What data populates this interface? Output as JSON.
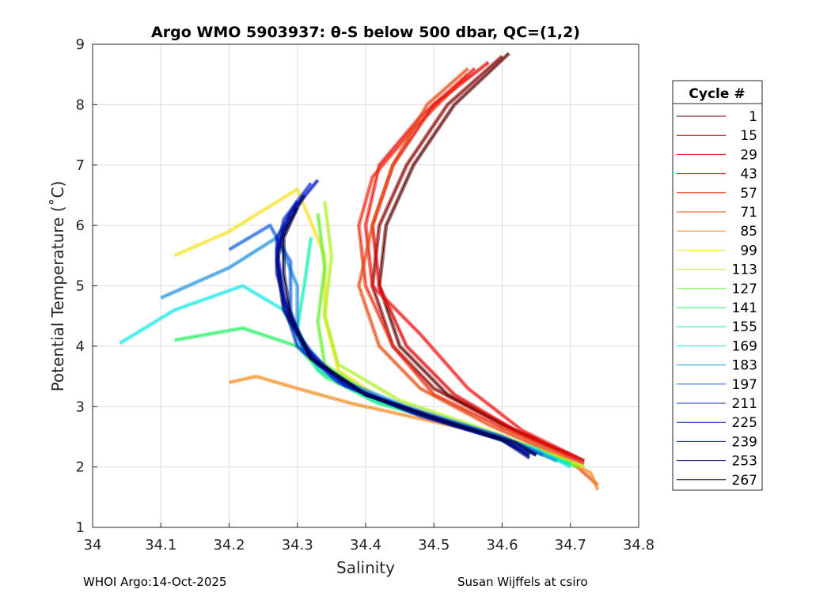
{
  "chart_data": {
    "type": "line",
    "title": "Argo WMO 5903937: θ-S below 500 dbar,  QC=(1,2)",
    "xlabel": "Salinity",
    "ylabel": "Potential Temperature (˚C)",
    "xlim": [
      34,
      34.8
    ],
    "ylim": [
      1,
      9
    ],
    "xticks": [
      "34",
      "34.1",
      "34.2",
      "34.3",
      "34.4",
      "34.5",
      "34.6",
      "34.7",
      "34.8"
    ],
    "yticks": [
      "1",
      "2",
      "3",
      "4",
      "5",
      "6",
      "7",
      "8",
      "9"
    ],
    "grid": true,
    "legend": {
      "title": "Cycle #",
      "placement": "outside-right"
    },
    "series": [
      {
        "name": "1",
        "color": "#5a0000",
        "points": [
          [
            34.61,
            8.85
          ],
          [
            34.53,
            8
          ],
          [
            34.47,
            7
          ],
          [
            34.43,
            6
          ],
          [
            34.42,
            5
          ],
          [
            34.45,
            4
          ],
          [
            34.52,
            3.2
          ],
          [
            34.62,
            2.6
          ],
          [
            34.7,
            2.2
          ],
          [
            34.72,
            2.1
          ]
        ]
      },
      {
        "name": "15",
        "color": "#8b0000",
        "points": [
          [
            34.6,
            8.8
          ],
          [
            34.52,
            8
          ],
          [
            34.46,
            7
          ],
          [
            34.42,
            6
          ],
          [
            34.41,
            5
          ],
          [
            34.44,
            4
          ],
          [
            34.5,
            3.3
          ],
          [
            34.6,
            2.7
          ],
          [
            34.7,
            2.2
          ]
        ]
      },
      {
        "name": "29",
        "color": "#e00000",
        "points": [
          [
            34.58,
            8.7
          ],
          [
            34.5,
            8
          ],
          [
            34.44,
            7
          ],
          [
            34.41,
            6
          ],
          [
            34.42,
            5
          ],
          [
            34.46,
            4
          ],
          [
            34.53,
            3.2
          ],
          [
            34.62,
            2.6
          ],
          [
            34.71,
            2.15
          ]
        ]
      },
      {
        "name": "43",
        "color": "#ee1010",
        "points": [
          [
            34.56,
            8.6
          ],
          [
            34.48,
            7.8
          ],
          [
            34.42,
            7
          ],
          [
            34.4,
            6
          ],
          [
            34.41,
            5
          ],
          [
            34.48,
            4.2
          ],
          [
            34.55,
            3.3
          ],
          [
            34.63,
            2.6
          ],
          [
            34.72,
            2.1
          ]
        ]
      },
      {
        "name": "57",
        "color": "#f02a10",
        "points": [
          [
            34.55,
            8.5
          ],
          [
            34.47,
            7.6
          ],
          [
            34.41,
            6.8
          ],
          [
            34.39,
            6
          ],
          [
            34.4,
            5
          ],
          [
            34.44,
            4
          ],
          [
            34.5,
            3.2
          ],
          [
            34.6,
            2.65
          ],
          [
            34.72,
            2.05
          ]
        ]
      },
      {
        "name": "71",
        "color": "#e84a10",
        "points": [
          [
            34.55,
            8.6
          ],
          [
            34.49,
            8
          ],
          [
            34.44,
            7
          ],
          [
            34.41,
            6
          ],
          [
            34.39,
            5
          ],
          [
            34.42,
            4
          ],
          [
            34.48,
            3.3
          ],
          [
            34.58,
            2.7
          ],
          [
            34.7,
            2.1
          ],
          [
            34.74,
            1.7
          ]
        ]
      },
      {
        "name": "85",
        "color": "#f08c20",
        "points": [
          [
            34.2,
            3.4
          ],
          [
            34.24,
            3.5
          ],
          [
            34.3,
            3.3
          ],
          [
            34.38,
            3.05
          ],
          [
            34.48,
            2.8
          ],
          [
            34.58,
            2.55
          ],
          [
            34.68,
            2.2
          ],
          [
            34.73,
            1.9
          ],
          [
            34.74,
            1.62
          ]
        ]
      },
      {
        "name": "99",
        "color": "#f5e020",
        "points": [
          [
            34.12,
            5.5
          ],
          [
            34.2,
            5.9
          ],
          [
            34.3,
            6.6
          ],
          [
            34.34,
            5.5
          ],
          [
            34.34,
            4.5
          ],
          [
            34.36,
            3.6
          ],
          [
            34.44,
            3.0
          ],
          [
            34.58,
            2.55
          ],
          [
            34.72,
            2.0
          ]
        ]
      },
      {
        "name": "113",
        "color": "#b0f020",
        "points": [
          [
            34.34,
            6.4
          ],
          [
            34.35,
            5.5
          ],
          [
            34.34,
            4.5
          ],
          [
            34.36,
            3.7
          ],
          [
            34.45,
            3.1
          ],
          [
            34.58,
            2.6
          ],
          [
            34.72,
            2.0
          ]
        ]
      },
      {
        "name": "127",
        "color": "#60f030",
        "points": [
          [
            34.33,
            6.2
          ],
          [
            34.34,
            5.3
          ],
          [
            34.33,
            4.4
          ],
          [
            34.34,
            3.7
          ],
          [
            34.42,
            3.1
          ],
          [
            34.56,
            2.6
          ],
          [
            34.71,
            2.0
          ]
        ]
      },
      {
        "name": "141",
        "color": "#20f060",
        "points": [
          [
            34.12,
            4.1
          ],
          [
            34.22,
            4.3
          ],
          [
            34.3,
            4.0
          ],
          [
            34.34,
            3.5
          ],
          [
            34.42,
            3.05
          ],
          [
            34.55,
            2.65
          ],
          [
            34.7,
            2.05
          ]
        ]
      },
      {
        "name": "155",
        "color": "#10f0b0",
        "points": [
          [
            34.32,
            5.8
          ],
          [
            34.31,
            5
          ],
          [
            34.3,
            4.3
          ],
          [
            34.33,
            3.6
          ],
          [
            34.41,
            3.1
          ],
          [
            34.55,
            2.65
          ],
          [
            34.7,
            2.05
          ]
        ]
      },
      {
        "name": "169",
        "color": "#10e8e8",
        "points": [
          [
            34.04,
            4.05
          ],
          [
            34.12,
            4.6
          ],
          [
            34.22,
            5.0
          ],
          [
            34.28,
            4.6
          ],
          [
            34.31,
            3.9
          ],
          [
            34.38,
            3.3
          ],
          [
            34.5,
            2.8
          ],
          [
            34.65,
            2.3
          ],
          [
            34.7,
            2.0
          ]
        ]
      },
      {
        "name": "183",
        "color": "#2090e0",
        "points": [
          [
            34.1,
            4.8
          ],
          [
            34.2,
            5.3
          ],
          [
            34.27,
            5.8
          ],
          [
            34.3,
            5.0
          ],
          [
            34.3,
            4.2
          ],
          [
            34.35,
            3.5
          ],
          [
            34.46,
            3.0
          ],
          [
            34.6,
            2.5
          ],
          [
            34.68,
            2.1
          ]
        ]
      },
      {
        "name": "197",
        "color": "#1060e0",
        "points": [
          [
            34.2,
            5.6
          ],
          [
            34.26,
            6.0
          ],
          [
            34.29,
            5.4
          ],
          [
            34.29,
            4.6
          ],
          [
            34.31,
            3.9
          ],
          [
            34.37,
            3.35
          ],
          [
            34.48,
            2.9
          ],
          [
            34.6,
            2.5
          ],
          [
            34.66,
            2.2
          ]
        ]
      },
      {
        "name": "211",
        "color": "#1030d0",
        "points": [
          [
            34.32,
            6.7
          ],
          [
            34.28,
            6.1
          ],
          [
            34.27,
            5.5
          ],
          [
            34.28,
            4.7
          ],
          [
            34.3,
            4.0
          ],
          [
            34.36,
            3.4
          ],
          [
            34.47,
            2.9
          ],
          [
            34.59,
            2.5
          ],
          [
            34.65,
            2.2
          ]
        ]
      },
      {
        "name": "225",
        "color": "#0010c0",
        "points": [
          [
            34.33,
            6.75
          ],
          [
            34.29,
            6.2
          ],
          [
            34.27,
            5.6
          ],
          [
            34.28,
            4.8
          ],
          [
            34.31,
            4.0
          ],
          [
            34.37,
            3.35
          ],
          [
            34.48,
            2.85
          ],
          [
            34.6,
            2.45
          ],
          [
            34.64,
            2.2
          ]
        ]
      },
      {
        "name": "239",
        "color": "#0010b0",
        "points": [
          [
            34.3,
            6.4
          ],
          [
            34.27,
            5.8
          ],
          [
            34.27,
            5.2
          ],
          [
            34.29,
            4.4
          ],
          [
            34.33,
            3.7
          ],
          [
            34.4,
            3.2
          ],
          [
            34.5,
            2.8
          ],
          [
            34.6,
            2.45
          ],
          [
            34.64,
            2.2
          ]
        ]
      },
      {
        "name": "253",
        "color": "#000870",
        "points": [
          [
            34.31,
            6.5
          ],
          [
            34.28,
            5.9
          ],
          [
            34.27,
            5.4
          ],
          [
            34.28,
            4.6
          ],
          [
            34.32,
            3.8
          ],
          [
            34.4,
            3.2
          ],
          [
            34.5,
            2.8
          ],
          [
            34.6,
            2.45
          ],
          [
            34.64,
            2.15
          ]
        ]
      },
      {
        "name": "267",
        "color": "#000040",
        "points": [
          [
            34.3,
            6.3
          ],
          [
            34.28,
            5.8
          ],
          [
            34.28,
            5.2
          ],
          [
            34.29,
            4.5
          ],
          [
            34.32,
            3.8
          ],
          [
            34.4,
            3.2
          ],
          [
            34.52,
            2.75
          ],
          [
            34.62,
            2.4
          ],
          [
            34.65,
            2.2
          ]
        ]
      }
    ]
  },
  "footer": {
    "left": "WHOI Argo:14-Oct-2025",
    "right": "Susan Wijffels at csiro"
  }
}
